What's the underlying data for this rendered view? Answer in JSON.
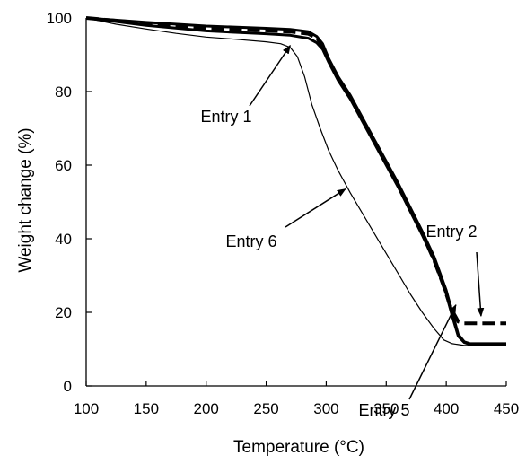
{
  "chart_data": {
    "type": "line",
    "title": "",
    "xlabel": "Temperature (°C)",
    "ylabel": "Weight change (%)",
    "xlim": [
      100,
      450
    ],
    "ylim": [
      0,
      100
    ],
    "x_ticks": [
      "100",
      "150",
      "200",
      "250",
      "300",
      "350",
      "400",
      "450"
    ],
    "y_ticks": [
      "0",
      "20",
      "40",
      "60",
      "80",
      "100"
    ],
    "grid": false,
    "legend": "none",
    "series": [
      {
        "name": "Entry 1",
        "style": "solid",
        "color": "#000000",
        "points": [
          [
            100,
            100
          ],
          [
            150,
            98.8
          ],
          [
            200,
            97.8
          ],
          [
            250,
            97.2
          ],
          [
            270,
            96.9
          ],
          [
            285,
            96.3
          ],
          [
            292,
            95
          ],
          [
            297,
            93
          ],
          [
            302,
            89
          ],
          [
            310,
            84
          ],
          [
            320,
            79
          ],
          [
            330,
            73
          ],
          [
            340,
            67
          ],
          [
            350,
            61
          ],
          [
            360,
            55
          ],
          [
            370,
            48.5
          ],
          [
            380,
            42
          ],
          [
            390,
            35
          ],
          [
            400,
            26
          ],
          [
            405,
            20
          ],
          [
            410,
            14
          ],
          [
            415,
            12
          ],
          [
            420,
            11.5
          ],
          [
            450,
            11.5
          ]
        ]
      },
      {
        "name": "Entry 2",
        "style": "dashed",
        "color": "#000000",
        "points": [
          [
            100,
            100
          ],
          [
            150,
            98.5
          ],
          [
            200,
            97.2
          ],
          [
            250,
            96.6
          ],
          [
            270,
            96.3
          ],
          [
            285,
            95.7
          ],
          [
            292,
            94.6
          ],
          [
            297,
            92.5
          ],
          [
            302,
            88.5
          ],
          [
            310,
            83.5
          ],
          [
            320,
            78.5
          ],
          [
            330,
            72.5
          ],
          [
            340,
            66.5
          ],
          [
            350,
            60.5
          ],
          [
            360,
            54.5
          ],
          [
            370,
            48
          ],
          [
            380,
            41.5
          ],
          [
            390,
            34
          ],
          [
            398,
            27
          ],
          [
            404,
            21
          ],
          [
            410,
            17.5
          ],
          [
            415,
            17
          ],
          [
            450,
            17
          ]
        ]
      },
      {
        "name": "Entry 5",
        "style": "solid",
        "color": "#000000",
        "points": [
          [
            100,
            100
          ],
          [
            150,
            98
          ],
          [
            200,
            96.5
          ],
          [
            250,
            95.7
          ],
          [
            270,
            95.3
          ],
          [
            285,
            94.5
          ],
          [
            292,
            93.3
          ],
          [
            297,
            91.5
          ],
          [
            302,
            88
          ],
          [
            310,
            83
          ],
          [
            320,
            78
          ],
          [
            330,
            72
          ],
          [
            340,
            66
          ],
          [
            350,
            60
          ],
          [
            360,
            54
          ],
          [
            370,
            47.5
          ],
          [
            380,
            41
          ],
          [
            390,
            34
          ],
          [
            400,
            25
          ],
          [
            405,
            19
          ],
          [
            410,
            13.5
          ],
          [
            415,
            11.8
          ],
          [
            420,
            11.3
          ],
          [
            450,
            11.2
          ]
        ]
      },
      {
        "name": "Entry 6",
        "style": "solid-thin",
        "color": "#000000",
        "points": [
          [
            100,
            100
          ],
          [
            125,
            98.3
          ],
          [
            150,
            97
          ],
          [
            175,
            95.8
          ],
          [
            200,
            94.8
          ],
          [
            225,
            94.2
          ],
          [
            250,
            93.5
          ],
          [
            262,
            93
          ],
          [
            270,
            92
          ],
          [
            276,
            89.5
          ],
          [
            282,
            84
          ],
          [
            288,
            76.5
          ],
          [
            295,
            70
          ],
          [
            302,
            64
          ],
          [
            310,
            58.5
          ],
          [
            320,
            52.5
          ],
          [
            330,
            47
          ],
          [
            340,
            41.5
          ],
          [
            350,
            36
          ],
          [
            360,
            30.5
          ],
          [
            370,
            25
          ],
          [
            380,
            20
          ],
          [
            390,
            15.5
          ],
          [
            398,
            12.5
          ],
          [
            405,
            11.5
          ],
          [
            415,
            11
          ],
          [
            450,
            11
          ]
        ]
      }
    ],
    "annotations": [
      {
        "text": "Entry 1",
        "target": [
          270,
          92.5
        ]
      },
      {
        "text": "Entry 2",
        "target": [
          429,
          19
        ]
      },
      {
        "text": "Entry 5",
        "target": [
          408,
          22
        ]
      },
      {
        "text": "Entry 6",
        "target": [
          316,
          53.5
        ]
      }
    ]
  }
}
